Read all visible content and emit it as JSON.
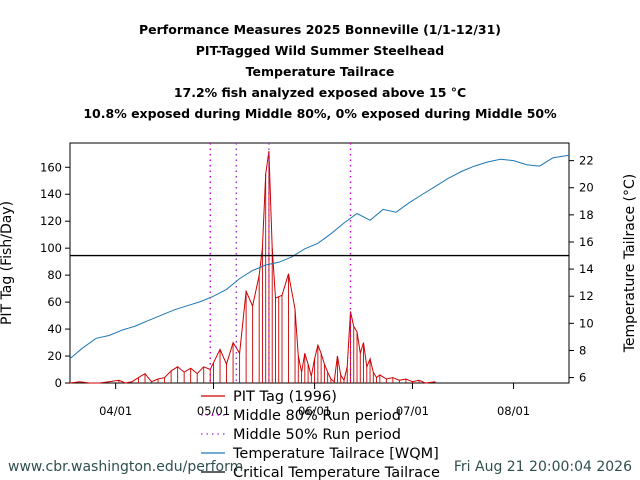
{
  "chart_data": {
    "type": "line",
    "title_lines": [
      "Performance Measures 2025 Bonneville (1/1-12/31)",
      "PIT-Tagged Wild Summer Steelhead",
      "Temperature Tailrace",
      "17.2% fish analyzed exposed above 15 °C",
      "10.8% exposed during Middle 80%, 0% exposed during Middle 50%"
    ],
    "ylabel_left": "PIT Tag (Fish/Day)",
    "ylabel_right": "Temperature Tailrace (°C)",
    "x_ticks": [
      "04/01",
      "05/01",
      "06/01",
      "07/01",
      "08/01"
    ],
    "x_range": [
      "1996-03-18",
      "1996-08-18"
    ],
    "y_left_ticks": [
      0,
      20,
      40,
      60,
      80,
      100,
      120,
      140,
      160
    ],
    "y_left_range": [
      0,
      178
    ],
    "y_right_ticks": [
      6,
      8,
      10,
      12,
      14,
      16,
      18,
      20,
      22
    ],
    "y_right_range": [
      5.6,
      23.3
    ],
    "grid": false,
    "legend_position": "bottom",
    "series": [
      {
        "name": "PIT Tag (1996)",
        "axis": "left",
        "color": "#cc0000",
        "x": [
          "1996-03-18",
          "1996-03-21",
          "1996-03-24",
          "1996-03-27",
          "1996-03-30",
          "1996-04-02",
          "1996-04-04",
          "1996-04-06",
          "1996-04-08",
          "1996-04-10",
          "1996-04-12",
          "1996-04-14",
          "1996-04-16",
          "1996-04-18",
          "1996-04-20",
          "1996-04-22",
          "1996-04-24",
          "1996-04-26",
          "1996-04-28",
          "1996-04-30",
          "1996-05-01",
          "1996-05-03",
          "1996-05-05",
          "1996-05-07",
          "1996-05-09",
          "1996-05-11",
          "1996-05-13",
          "1996-05-15",
          "1996-05-16",
          "1996-05-17",
          "1996-05-18",
          "1996-05-19",
          "1996-05-20",
          "1996-05-21",
          "1996-05-22",
          "1996-05-24",
          "1996-05-26",
          "1996-05-27",
          "1996-05-28",
          "1996-05-29",
          "1996-05-30",
          "1996-05-31",
          "1996-06-01",
          "1996-06-02",
          "1996-06-03",
          "1996-06-04",
          "1996-06-05",
          "1996-06-06",
          "1996-06-07",
          "1996-06-08",
          "1996-06-09",
          "1996-06-10",
          "1996-06-11",
          "1996-06-12",
          "1996-06-13",
          "1996-06-14",
          "1996-06-15",
          "1996-06-16",
          "1996-06-17",
          "1996-06-18",
          "1996-06-19",
          "1996-06-20",
          "1996-06-21",
          "1996-06-23",
          "1996-06-25",
          "1996-06-27",
          "1996-06-29",
          "1996-07-01",
          "1996-07-03",
          "1996-07-05",
          "1996-07-08"
        ],
        "values": [
          0,
          1,
          0,
          0,
          1,
          2,
          0,
          1,
          4,
          7,
          1,
          3,
          4,
          9,
          12,
          8,
          11,
          7,
          12,
          10,
          15,
          25,
          14,
          30,
          22,
          68,
          57,
          80,
          100,
          155,
          172,
          100,
          63,
          64,
          65,
          81,
          55,
          20,
          8,
          22,
          14,
          5,
          18,
          28,
          22,
          14,
          8,
          3,
          1,
          20,
          6,
          2,
          12,
          53,
          42,
          38,
          22,
          30,
          12,
          18,
          8,
          4,
          6,
          3,
          4,
          2,
          3,
          1,
          2,
          0,
          1
        ]
      },
      {
        "name": "Middle 80% Run period",
        "axis": "left",
        "color": "#cc00cc",
        "style": "dotted",
        "x": [
          "1996-04-30",
          "1996-06-12"
        ]
      },
      {
        "name": "Middle 50% Run period",
        "axis": "left",
        "color": "#9933cc",
        "style": "dotted",
        "x": [
          "1996-05-08",
          "1996-05-18"
        ]
      },
      {
        "name": "Temperature Tailrace [WQM]",
        "axis": "right",
        "color": "#1f77b4",
        "x": [
          "1996-03-18",
          "1996-03-22",
          "1996-03-26",
          "1996-03-30",
          "1996-04-03",
          "1996-04-07",
          "1996-04-11",
          "1996-04-15",
          "1996-04-19",
          "1996-04-23",
          "1996-04-27",
          "1996-05-01",
          "1996-05-05",
          "1996-05-09",
          "1996-05-13",
          "1996-05-17",
          "1996-05-21",
          "1996-05-25",
          "1996-05-29",
          "1996-06-02",
          "1996-06-06",
          "1996-06-10",
          "1996-06-14",
          "1996-06-18",
          "1996-06-22",
          "1996-06-26",
          "1996-06-30",
          "1996-07-04",
          "1996-07-08",
          "1996-07-12",
          "1996-07-16",
          "1996-07-20",
          "1996-07-24",
          "1996-07-28",
          "1996-08-01",
          "1996-08-05",
          "1996-08-09",
          "1996-08-13",
          "1996-08-18"
        ],
        "values": [
          7.4,
          8.2,
          8.9,
          9.1,
          9.5,
          9.8,
          10.2,
          10.6,
          11.0,
          11.3,
          11.6,
          12.0,
          12.5,
          13.3,
          13.9,
          14.3,
          14.5,
          14.9,
          15.5,
          15.9,
          16.6,
          17.4,
          18.1,
          17.6,
          18.4,
          18.2,
          18.9,
          19.5,
          20.1,
          20.7,
          21.2,
          21.6,
          21.9,
          22.1,
          22.0,
          21.7,
          21.6,
          22.2,
          22.4
        ]
      },
      {
        "name": "Critical Temperature Tailrace",
        "axis": "right",
        "color": "#000000",
        "values": [
          15
        ]
      }
    ]
  },
  "footer": {
    "source": "www.cbr.washington.edu/perform",
    "timestamp": "Fri Aug 21 20:00:04 2026"
  }
}
